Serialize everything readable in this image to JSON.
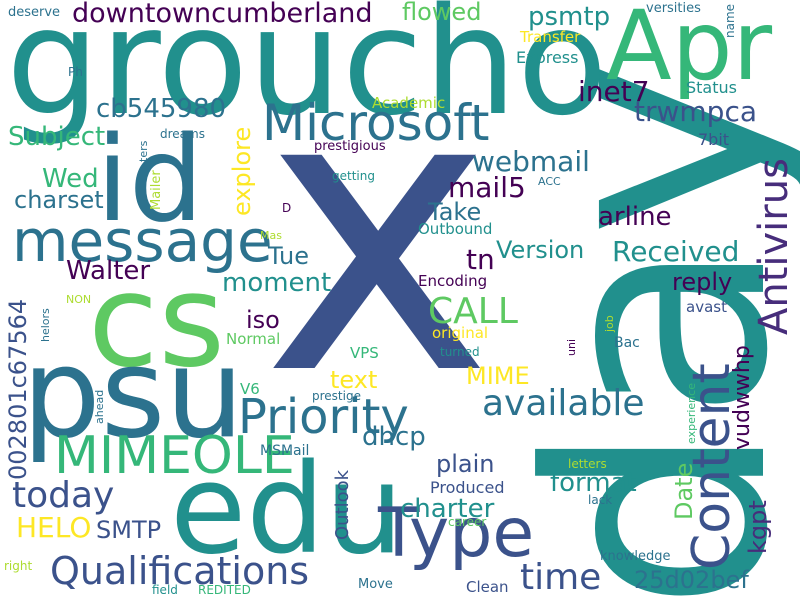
{
  "words": {
    "x": "x",
    "day": "day",
    "groucho": "groucho",
    "apr": "Apr",
    "id": "id",
    "cs": "cs",
    "psu": "psu",
    "edu": "edu",
    "message": "message",
    "microsoft": "Microsoft",
    "antivirus": "Antivirus",
    "content": "Content",
    "type": "Type",
    "priority": "Priority",
    "mimeole": "MIMEOLE",
    "qualifications": "Qualifications",
    "downtowncumberland": "downtowncumberland",
    "cb545980": "cb545980",
    "subject": "Subject",
    "wed": "Wed",
    "charset": "charset",
    "walter": "Walter",
    "today": "today",
    "helo": "HELO",
    "smtp": "SMTP",
    "n002801c67564": "002801c67564",
    "time": "time",
    "n25d02bef": "25d02bef",
    "available": "available",
    "call": "CALL",
    "received": "Received",
    "webmail": "webmail",
    "mail5": "mail5",
    "inet7": "inet7",
    "trwmpca": "trwmpca",
    "psmtp": "psmtp",
    "flowed": "flowed",
    "arline": "arline",
    "take": "Take",
    "version": "Version",
    "tn": "tn",
    "moment": "moment",
    "tue": "Tue",
    "iso": "iso",
    "text": "text",
    "mime": "MIME",
    "plain": "plain",
    "dhcp": "dhcp",
    "format": "format",
    "charter": "charter",
    "reply": "reply",
    "explore": "explore",
    "kgpt": "kgpt",
    "vudwwhp": "vudwwhp",
    "date": "Date",
    "outlook": "Outlook",
    "produced": "Produced",
    "transfer": "Transfer",
    "express": "Express",
    "status": "Status",
    "n7bit": "7bit",
    "versities": "versities",
    "name": "name",
    "academic": "Academic",
    "prestigious": "prestigious",
    "getting": "getting",
    "acc": "ACC",
    "outbound": "Outbound",
    "encoding": "Encoding",
    "original": "original",
    "turned": "turned",
    "vps": "VPS",
    "normal": "Normal",
    "v6": "V6",
    "prestige": "prestige",
    "msmail": "MSMail",
    "avast": "avast",
    "bac": "Bac",
    "job": "job",
    "uni": "uni",
    "experience": "experience",
    "letters": "letters",
    "lack": "lack",
    "career": "career",
    "knowledge": "knowledge",
    "clean": "Clean",
    "move": "Move",
    "field": "field",
    "redited": "REDITED",
    "right": "right",
    "ahead": "ahead",
    "helors": "helors",
    "non": "NON",
    "mas": "Mas",
    "d": "D",
    "mailer": "Mailer",
    "ters": "ters",
    "dreams": "dreams",
    "ph": "Ph",
    "deserve": "deserve"
  },
  "colors": {
    "navy": "#3b528b",
    "teal": "#21908d",
    "teal_dark": "#2c728e",
    "green": "#5ec962",
    "green_mid": "#35b779",
    "lime": "#addc30",
    "yellow": "#fde725",
    "purple": "#440154",
    "indigo": "#472d7b"
  }
}
